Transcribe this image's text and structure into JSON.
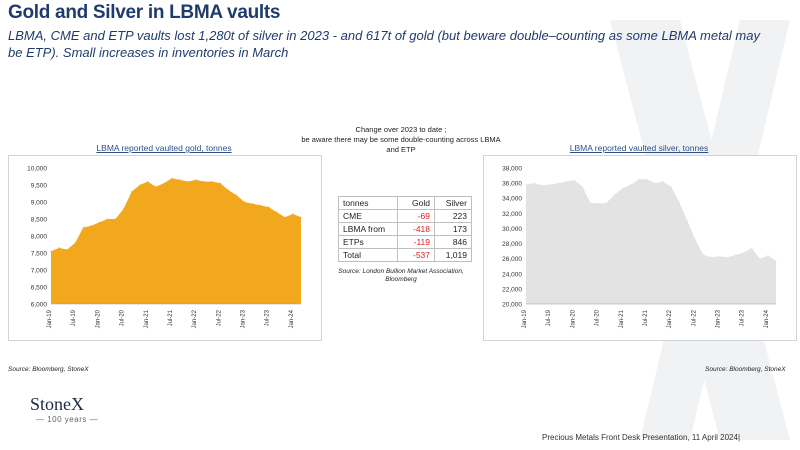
{
  "header": {
    "title": "Gold and Silver in LBMA vaults",
    "subtitle": "LBMA, CME and ETP vaults lost 1,280t of silver in 2023  - and 617t of gold (but beware double–counting as some LBMA metal may be ETP).  Small increases in inventories in March"
  },
  "note": {
    "line1": "Change over 2023 to date ;",
    "line2": "be aware there may be some double-counting across LBMA",
    "line3": "and ETP"
  },
  "table": {
    "headers": [
      "tonnes",
      "Gold",
      "Silver"
    ],
    "rows": [
      [
        "CME",
        "-69",
        "223"
      ],
      [
        "LBMA from",
        "-418",
        "173"
      ],
      [
        "ETPs",
        "-119",
        "846"
      ],
      [
        "Total",
        "-537",
        "1,019"
      ]
    ],
    "source": "Source:  London  Bullion Market Association, Bloomberg"
  },
  "sources": {
    "left": "Source: Bloomberg,  StoneX",
    "right": "Source: Bloomberg,  StoneX"
  },
  "logo": {
    "name": "StoneX",
    "tagline": "— 100 years —"
  },
  "footer": "Precious Metals Front Desk Presentation, 11 April 2024|",
  "colors": {
    "gold": "#f2a81d",
    "silver": "#e3e3e3",
    "title": "#1f3b6e",
    "negative": "#e02020"
  },
  "chart_data": [
    {
      "type": "area",
      "title": "LBMA reported vaulted gold, tonnes",
      "xlabel": "",
      "ylabel": "",
      "ylim": [
        6000,
        10000
      ],
      "yticks": [
        "6,000",
        "6,500",
        "7,000",
        "7,500",
        "8,000",
        "8,500",
        "9,000",
        "9,500",
        "10,000"
      ],
      "xticks": [
        "Jan-19",
        "Jul-19",
        "Jan-20",
        "Jul-20",
        "Jan-21",
        "Jul-21",
        "Jan-22",
        "Jul-22",
        "Jan-23",
        "Jul-23",
        "Jan-24"
      ],
      "x": [
        "Jan-19",
        "Mar-19",
        "May-19",
        "Jul-19",
        "Sep-19",
        "Nov-19",
        "Jan-20",
        "Mar-20",
        "May-20",
        "Jul-20",
        "Sep-20",
        "Nov-20",
        "Jan-21",
        "Mar-21",
        "May-21",
        "Jul-21",
        "Sep-21",
        "Nov-21",
        "Jan-22",
        "Mar-22",
        "May-22",
        "Jul-22",
        "Sep-22",
        "Nov-22",
        "Jan-23",
        "Mar-23",
        "May-23",
        "Jul-23",
        "Sep-23",
        "Nov-23",
        "Jan-24",
        "Mar-24"
      ],
      "values": [
        7550,
        7650,
        7600,
        7800,
        8250,
        8300,
        8400,
        8500,
        8500,
        8800,
        9300,
        9500,
        9600,
        9450,
        9550,
        9700,
        9650,
        9600,
        9650,
        9600,
        9600,
        9550,
        9350,
        9200,
        9000,
        8950,
        8900,
        8850,
        8700,
        8550,
        8650,
        8550
      ],
      "color": "#f2a81d",
      "grid": false
    },
    {
      "type": "area",
      "title": "LBMA reported vaulted silver, tonnes",
      "xlabel": "",
      "ylabel": "",
      "ylim": [
        20000,
        38000
      ],
      "yticks": [
        "20,000",
        "22,000",
        "24,000",
        "26,000",
        "28,000",
        "30,000",
        "32,000",
        "34,000",
        "36,000",
        "38,000"
      ],
      "xticks": [
        "Jan-19",
        "Jul-19",
        "Jan-20",
        "Jul-20",
        "Jan-21",
        "Jul-21",
        "Jan-22",
        "Jul-22",
        "Jan-23",
        "Jul-23",
        "Jan-24"
      ],
      "x": [
        "Jan-19",
        "Mar-19",
        "May-19",
        "Jul-19",
        "Sep-19",
        "Nov-19",
        "Jan-20",
        "Mar-20",
        "May-20",
        "Jul-20",
        "Sep-20",
        "Nov-20",
        "Jan-21",
        "Mar-21",
        "May-21",
        "Jul-21",
        "Sep-21",
        "Nov-21",
        "Jan-22",
        "Mar-22",
        "May-22",
        "Jul-22",
        "Sep-22",
        "Nov-22",
        "Jan-23",
        "Mar-23",
        "May-23",
        "Jul-23",
        "Sep-23",
        "Nov-23",
        "Jan-24",
        "Mar-24"
      ],
      "values": [
        35800,
        36000,
        35700,
        35800,
        36000,
        36200,
        36400,
        35500,
        33400,
        33300,
        33400,
        34500,
        35300,
        35800,
        36500,
        36500,
        36000,
        36200,
        35500,
        33500,
        31000,
        28500,
        26500,
        26200,
        26300,
        26200,
        26500,
        26800,
        27400,
        26000,
        26400,
        25700
      ],
      "color": "#e3e3e3",
      "grid": false
    }
  ]
}
